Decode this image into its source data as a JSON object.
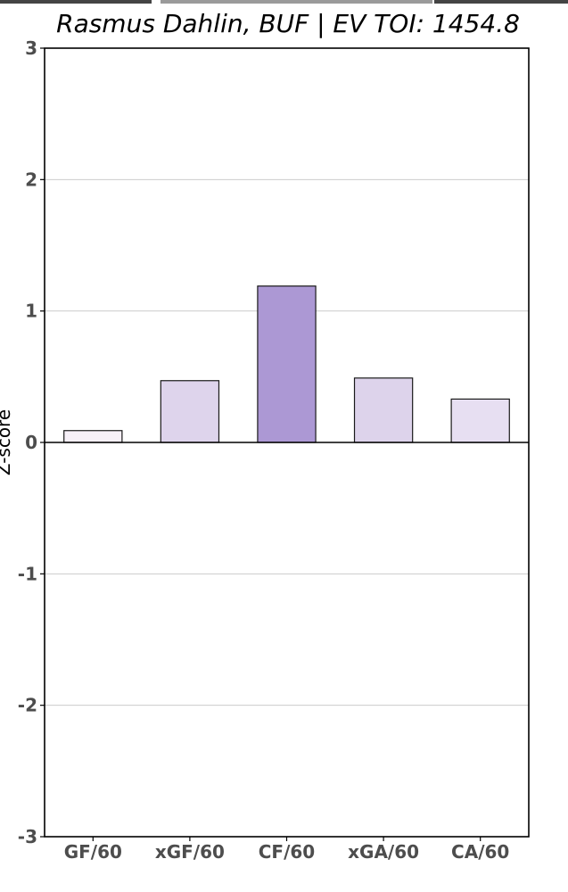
{
  "chart_data": {
    "type": "bar",
    "title": "Rasmus Dahlin, BUF  |  EV TOI: 1454.8",
    "xlabel": "",
    "ylabel": "Z-score",
    "categories": [
      "GF/60",
      "xGF/60",
      "CF/60",
      "xGA/60",
      "CA/60"
    ],
    "values": [
      0.09,
      0.47,
      1.19,
      0.49,
      0.33
    ],
    "bar_colors": [
      "#f7f0f8",
      "#ded4ec",
      "#ac98d4",
      "#ddd3eb",
      "#e7dff2"
    ],
    "ylim": [
      -3,
      3
    ],
    "yticks": [
      "-3",
      "-2",
      "-1",
      "0",
      "1",
      "2",
      "3"
    ],
    "grid": true,
    "colors": {
      "frame": "#000000",
      "grid": "#cccccc",
      "ticks": "#4d4d4d"
    }
  }
}
